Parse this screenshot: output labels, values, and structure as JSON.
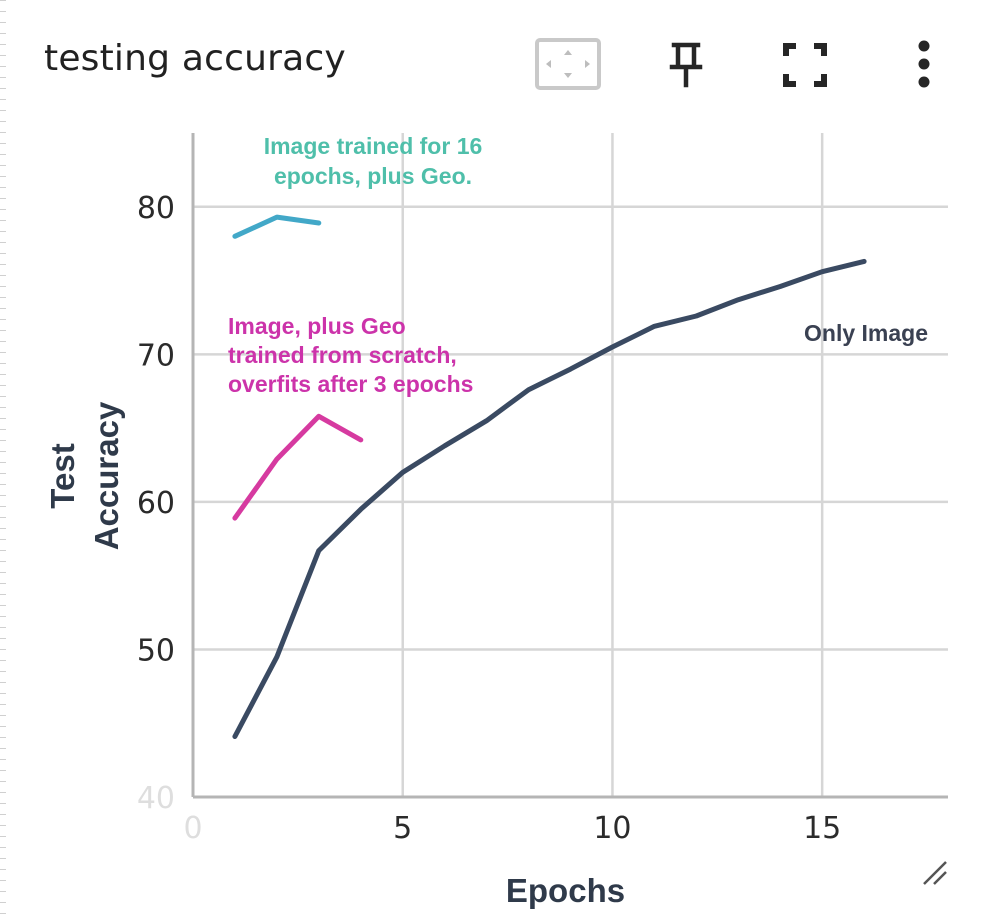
{
  "card": {
    "title": "testing accuracy",
    "toolbar": [
      {
        "name": "data-selection-icon"
      },
      {
        "name": "pin-icon"
      },
      {
        "name": "fullscreen-icon"
      },
      {
        "name": "more-vert-icon"
      }
    ]
  },
  "chart_data": {
    "type": "line",
    "xlabel": "Epochs",
    "ylabel": "Test\nAccuracy",
    "xlim": [
      0,
      18
    ],
    "ylim": [
      40,
      85
    ],
    "xticks": [
      0,
      5,
      10,
      15
    ],
    "yticks": [
      40,
      50,
      60,
      70,
      80
    ],
    "grid": true,
    "series": [
      {
        "color": "#3a4a62",
        "x": [
          1,
          2,
          3,
          4,
          5,
          6,
          7,
          8,
          9,
          10,
          11,
          12,
          13,
          14,
          15,
          16
        ],
        "y": [
          44.1,
          49.5,
          56.7,
          59.5,
          62.0,
          63.8,
          65.5,
          67.6,
          69.0,
          70.5,
          71.9,
          72.6,
          73.7,
          74.6,
          75.6,
          76.3
        ]
      },
      {
        "color": "#d63aa0",
        "x": [
          1,
          2,
          3,
          4
        ],
        "y": [
          58.9,
          62.9,
          65.8,
          64.2
        ]
      },
      {
        "color": "#42a8c8",
        "x": [
          1,
          2,
          3
        ],
        "y": [
          78.0,
          79.3,
          78.9
        ]
      }
    ],
    "annotations": [
      {
        "lines": [
          "Image trained for 16",
          "epochs, plus Geo."
        ],
        "color": "#4fbfaa"
      },
      {
        "lines": [
          "Image, plus Geo",
          "trained from scratch,",
          "overfits after 3 epochs"
        ],
        "color": "#cc33aa"
      },
      {
        "lines": [
          "Only Image"
        ],
        "color": "#3a4152"
      }
    ]
  }
}
